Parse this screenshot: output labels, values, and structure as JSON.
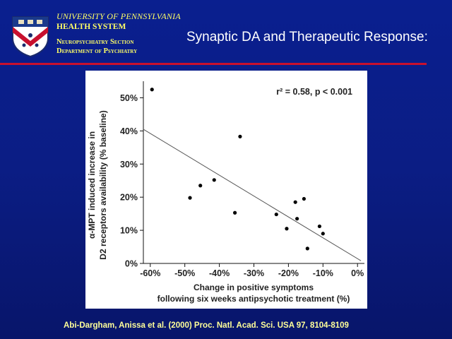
{
  "header": {
    "university": "UNIVERSITY OF PENNSYLVANIA",
    "health_system": "HEALTH SYSTEM",
    "section": "Neuropsychiatry Section",
    "department": "Department of Psychiatry",
    "logo_icon": "penn-shield-icon"
  },
  "slide": {
    "title": "Synaptic DA and Therapeutic Response:",
    "citation": "Abi-Dargham, Anissa et al. (2000) Proc. Natl. Acad. Sci. USA 97, 8104-8109"
  },
  "colors": {
    "background": "#0b1d84",
    "accent_rule": "#c8102e",
    "header_text": "#ffff66",
    "title_text": "#ffffff"
  },
  "chart_data": {
    "type": "scatter",
    "annotation": "r² = 0.58, p < 0.001",
    "xlabel": "Change in positive symptoms",
    "xlabel2": "following six weeks antipsychotic treatment (%)",
    "ylabel": "α-MPT induced increase in",
    "ylabel2": "D2 receptors availability (% baseline)",
    "xlim": [
      -62,
      2
    ],
    "ylim": [
      0,
      55
    ],
    "xticks": [
      -60,
      -50,
      -40,
      -30,
      -20,
      -10,
      0
    ],
    "xtick_labels": [
      "-60%",
      "-50%",
      "-40%",
      "-30%",
      "-20%",
      "-10%",
      "0%"
    ],
    "yticks": [
      0,
      10,
      20,
      30,
      40,
      50
    ],
    "ytick_labels": [
      "0%",
      "10%",
      "20%",
      "30%",
      "40%",
      "50%"
    ],
    "x": [
      -59.5,
      -48.5,
      -45.5,
      -41.5,
      -35.5,
      -34,
      -23.5,
      -20.5,
      -18,
      -17.5,
      -15.5,
      -11,
      -10,
      -14.5
    ],
    "y": [
      52.5,
      19.8,
      23.5,
      25.2,
      15.3,
      38.3,
      14.8,
      10.5,
      18.5,
      13.5,
      19.5,
      11.2,
      9,
      4.5
    ],
    "fit_line": {
      "x": [
        -62,
        1
      ],
      "y": [
        40.5,
        0.8
      ]
    },
    "grid": false
  }
}
